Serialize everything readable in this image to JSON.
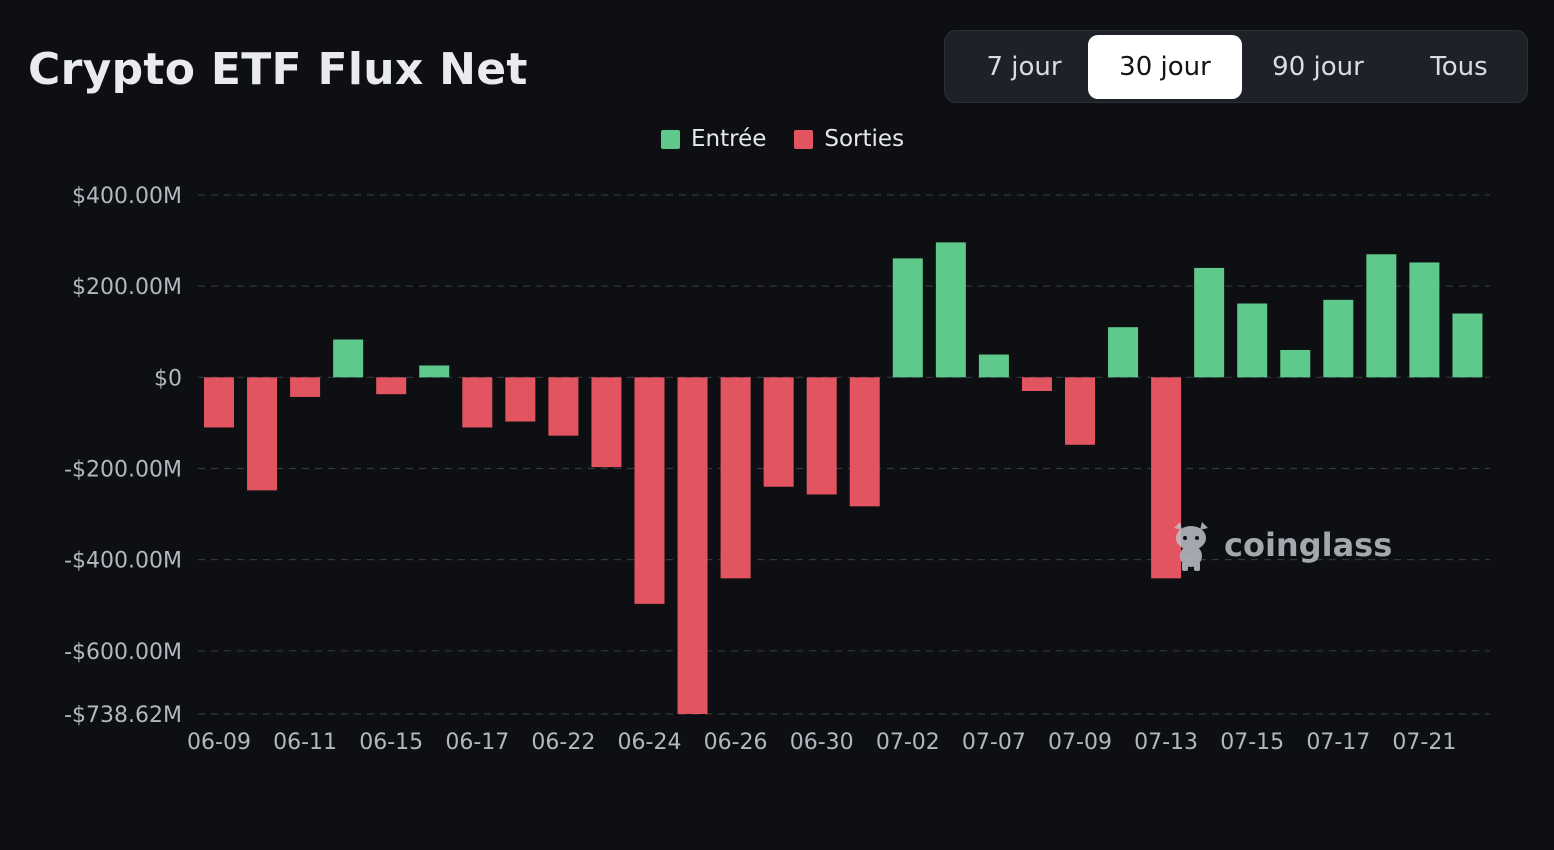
{
  "header": {
    "title": "Crypto ETF Flux Net"
  },
  "range_tabs": [
    {
      "label": "7 jour",
      "active": false
    },
    {
      "label": "30 jour",
      "active": true
    },
    {
      "label": "90 jour",
      "active": false
    },
    {
      "label": "Tous",
      "active": false
    }
  ],
  "legend": [
    {
      "label": "Entrée",
      "color": "#5ec98a"
    },
    {
      "label": "Sorties",
      "color": "#e25560"
    }
  ],
  "watermark": {
    "text": "coinglass",
    "icon": "bull-mascot-icon"
  },
  "chart_data": {
    "type": "bar",
    "title": "Crypto ETF Flux Net",
    "xlabel": "",
    "ylabel": "",
    "ylim": [
      -738.62,
      400
    ],
    "grid": true,
    "legend_position": "top-center",
    "y_ticks": [
      {
        "value": 400,
        "label": "$400.00M"
      },
      {
        "value": 200,
        "label": "$200.00M"
      },
      {
        "value": 0,
        "label": "$0"
      },
      {
        "value": -200,
        "label": "-$200.00M"
      },
      {
        "value": -400,
        "label": "-$400.00M"
      },
      {
        "value": -600,
        "label": "-$600.00M"
      },
      {
        "value": -738.62,
        "label": "-$738.62M"
      }
    ],
    "x_tick_labels": [
      "06-09",
      "06-11",
      "06-15",
      "06-17",
      "06-22",
      "06-24",
      "06-26",
      "06-30",
      "07-02",
      "07-07",
      "07-09",
      "07-13",
      "07-15",
      "07-17",
      "07-21"
    ],
    "series": [
      {
        "name": "Entrée",
        "color": "#5ec98a"
      },
      {
        "name": "Sorties",
        "color": "#e25560"
      }
    ],
    "values": [
      -110,
      -248,
      -43,
      83,
      -37,
      26,
      -110,
      -97,
      -128,
      -197,
      -497,
      -738.62,
      -441,
      -240,
      -257,
      -283,
      261,
      296,
      50,
      -30,
      -148,
      110,
      -441,
      240,
      162,
      60,
      170,
      270,
      252,
      140
    ]
  }
}
